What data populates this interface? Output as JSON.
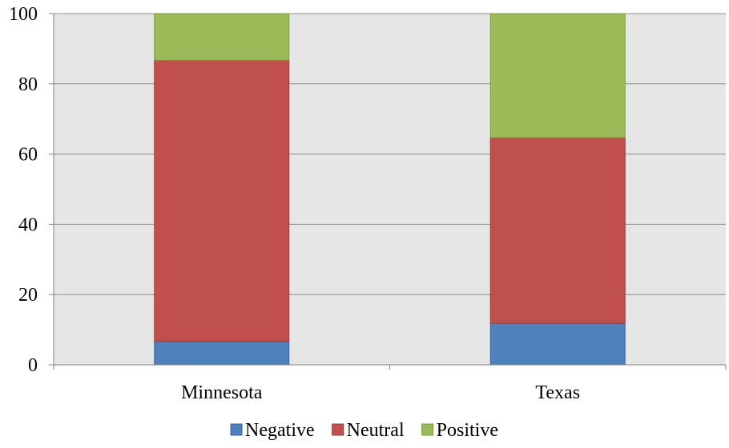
{
  "chart_data": {
    "type": "bar",
    "stacked": true,
    "categories": [
      "Minnesota",
      "Texas"
    ],
    "series": [
      {
        "name": "Negative",
        "values": [
          6.7,
          11.8
        ],
        "color": "#4f81bd",
        "stroke": "#3a6598"
      },
      {
        "name": "Neutral",
        "values": [
          80.0,
          52.9
        ],
        "color": "#c0504d",
        "stroke": "#9a3c3a"
      },
      {
        "name": "Positive",
        "values": [
          13.3,
          35.3
        ],
        "color": "#9bbb59",
        "stroke": "#7a9a3e"
      }
    ],
    "ylim": [
      0,
      100
    ],
    "yticks": [
      "0",
      "20",
      "40",
      "60",
      "80",
      "100"
    ],
    "grid": true,
    "plot_background": "#e6e6e6",
    "legend_position": "bottom"
  }
}
